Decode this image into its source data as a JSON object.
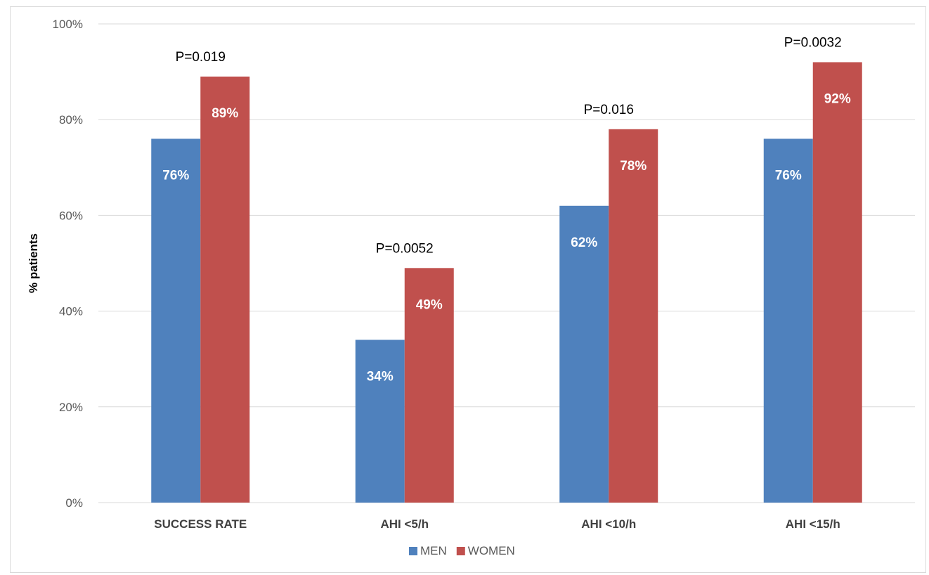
{
  "chart_data": {
    "type": "bar",
    "title": "",
    "xlabel": "",
    "ylabel": "% patients",
    "ylim": [
      0,
      100
    ],
    "yticks": [
      0,
      20,
      40,
      60,
      80,
      100
    ],
    "ytick_labels": [
      "0%",
      "20%",
      "40%",
      "60%",
      "80%",
      "100%"
    ],
    "grid": true,
    "legend_position": "bottom",
    "categories": [
      "SUCCESS RATE",
      "AHI <5/h",
      "AHI <10/h",
      "AHI <15/h"
    ],
    "series": [
      {
        "name": "MEN",
        "color": "#4F81BD",
        "values": [
          76,
          34,
          62,
          76
        ],
        "labels": [
          "76%",
          "34%",
          "62%",
          "76%"
        ]
      },
      {
        "name": "WOMEN",
        "color": "#C0504D",
        "values": [
          89,
          49,
          78,
          92
        ],
        "labels": [
          "89%",
          "49%",
          "78%",
          "92%"
        ]
      }
    ],
    "annotations": [
      "P=0.019",
      "P=0.0052",
      "P=0.016",
      "P=0.0032"
    ]
  }
}
